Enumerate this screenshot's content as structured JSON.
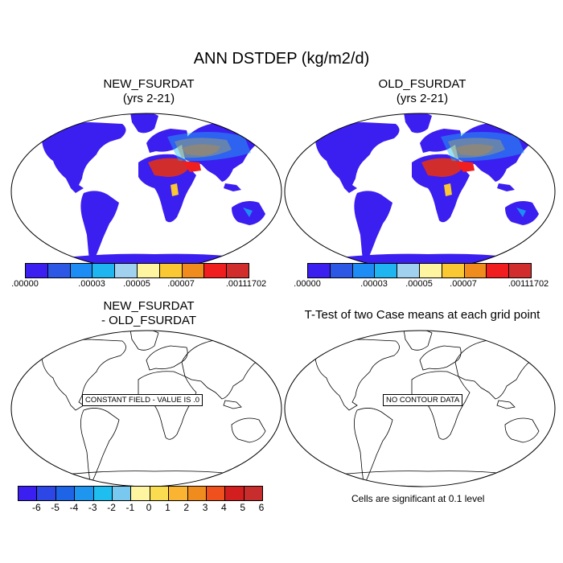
{
  "title": "ANN DSTDEP (kg/m2/d)",
  "panels": [
    {
      "id": "new",
      "title_line1": "NEW_FSURDAT",
      "title_line2": "(yrs 2-21)"
    },
    {
      "id": "old",
      "title_line1": "OLD_FSURDAT",
      "title_line2": "(yrs 2-21)"
    },
    {
      "id": "diff",
      "title_line1": "NEW_FSURDAT",
      "title_line2": "- OLD_FSURDAT",
      "message": "CONSTANT FIELD - VALUE IS .0"
    },
    {
      "id": "ttest",
      "title_line1": "T-Test of two Case means at each grid point",
      "message": "NO CONTOUR DATA"
    }
  ],
  "colorbar_top": {
    "colors": [
      "#3b1ef0",
      "#2d58e6",
      "#1e8cf5",
      "#1eb5f0",
      "#a0d2f0",
      "#fff5a0",
      "#fac832",
      "#f08c1e",
      "#f01e1e",
      "#d22d2d"
    ],
    "labels": [
      ".00000",
      ".00003",
      ".00005",
      ".00007",
      ".00111702"
    ]
  },
  "colorbar_bottom": {
    "colors": [
      "#3b1ef0",
      "#2d46e6",
      "#1e64e6",
      "#1e96f0",
      "#1ebef0",
      "#78c8f0",
      "#fff5a0",
      "#fadc50",
      "#fab432",
      "#f08c1e",
      "#f0501e",
      "#d21e1e",
      "#c82d2d"
    ],
    "labels": [
      "-6",
      "-5",
      "-4",
      "-3",
      "-2",
      "-1",
      "0",
      "1",
      "2",
      "3",
      "4",
      "5",
      "6"
    ]
  },
  "note": "Cells are significant at 0.1 level",
  "colors": {
    "low": "#3b1ef0",
    "high": "#d22d2d"
  }
}
